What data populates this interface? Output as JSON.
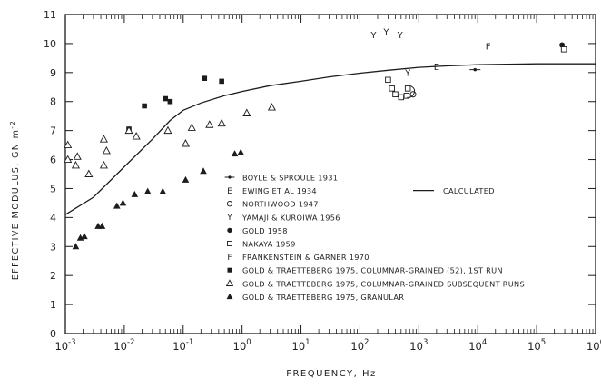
{
  "chart_data": {
    "type": "scatter",
    "x_scale": "log",
    "xlim": [
      0.001,
      1000000
    ],
    "ylim": [
      0,
      11
    ],
    "xlabel": "FREQUENCY, Hz",
    "ylabel": "EFFECTIVE MODULUS, GN m",
    "ylabel_exponent": "-2",
    "x_ticks": [
      {
        "base": "10",
        "exp": "-3"
      },
      {
        "base": "10",
        "exp": "-2"
      },
      {
        "base": "10",
        "exp": "-1"
      },
      {
        "base": "10",
        "exp": "0"
      },
      {
        "base": "10",
        "exp": "1"
      },
      {
        "base": "10",
        "exp": "2"
      },
      {
        "base": "10",
        "exp": "3"
      },
      {
        "base": "10",
        "exp": "4"
      },
      {
        "base": "10",
        "exp": "5"
      },
      {
        "base": "10",
        "exp": "6"
      }
    ],
    "y_ticks": [
      "0",
      "1",
      "2",
      "3",
      "4",
      "5",
      "6",
      "7",
      "8",
      "9",
      "10",
      "11"
    ],
    "legend": [
      {
        "marker": "bar-dot",
        "label": "BOYLE & SPROULE 1931"
      },
      {
        "marker": "E",
        "label": "EWING ET AL 1934"
      },
      {
        "marker": "circle-open",
        "label": "NORTHWOOD 1947"
      },
      {
        "marker": "Y",
        "label": "YAMAJI & KUROIWA 1956"
      },
      {
        "marker": "circle-filled",
        "label": "GOLD 1958"
      },
      {
        "marker": "square-open",
        "label": "NAKAYA 1959"
      },
      {
        "marker": "F",
        "label": "FRANKENSTEIN & GARNER 1970"
      },
      {
        "marker": "square-filled",
        "label": "GOLD & TRAETTEBERG 1975, COLUMNAR-GRAINED (52), 1ST RUN"
      },
      {
        "marker": "triangle-open",
        "label": "GOLD & TRAETTEBERG 1975, COLUMNAR-GRAINED SUBSEQUENT RUNS"
      },
      {
        "marker": "triangle-filled",
        "label": "GOLD & TRAETTEBERG 1975, GRANULAR"
      }
    ],
    "calculated_label": "CALCULATED",
    "legend_placement": "lower-right",
    "calculated_curve": [
      [
        0.001,
        4.1
      ],
      [
        0.003,
        4.7
      ],
      [
        0.01,
        5.75
      ],
      [
        0.03,
        6.7
      ],
      [
        0.06,
        7.35
      ],
      [
        0.1,
        7.7
      ],
      [
        0.2,
        7.95
      ],
      [
        0.5,
        8.2
      ],
      [
        1,
        8.35
      ],
      [
        3,
        8.55
      ],
      [
        10,
        8.7
      ],
      [
        30,
        8.85
      ],
      [
        100,
        8.98
      ],
      [
        300,
        9.08
      ],
      [
        1000,
        9.18
      ],
      [
        3000,
        9.23
      ],
      [
        10000,
        9.27
      ],
      [
        100000,
        9.3
      ],
      [
        1000000,
        9.3
      ]
    ],
    "series": [
      {
        "marker": "bar-dot",
        "points": [
          [
            9000,
            9.1
          ]
        ]
      },
      {
        "marker": "E",
        "points": [
          [
            2000,
            9.2
          ]
        ]
      },
      {
        "marker": "circle-open",
        "points": [
          [
            800,
            8.25
          ]
        ]
      },
      {
        "marker": "Y",
        "points": [
          [
            170,
            10.3
          ],
          [
            280,
            10.4
          ],
          [
            480,
            10.3
          ],
          [
            650,
            9.0
          ]
        ]
      },
      {
        "marker": "circle-filled",
        "points": [
          [
            270000,
            9.95
          ]
        ]
      },
      {
        "marker": "square-open",
        "points": [
          [
            300,
            8.75
          ],
          [
            350,
            8.45
          ],
          [
            400,
            8.25
          ],
          [
            500,
            8.15
          ],
          [
            620,
            8.2
          ],
          [
            650,
            8.45
          ],
          [
            290000,
            9.8
          ]
        ]
      },
      {
        "marker": "F",
        "points": [
          [
            15000,
            9.9
          ]
        ]
      },
      {
        "marker": "square-filled",
        "points": [
          [
            0.012,
            7.05
          ],
          [
            0.022,
            7.85
          ],
          [
            0.05,
            8.1
          ],
          [
            0.06,
            8.0
          ],
          [
            0.23,
            8.8
          ],
          [
            0.45,
            8.7
          ]
        ]
      },
      {
        "marker": "triangle-open",
        "points": [
          [
            0.0011,
            6.5
          ],
          [
            0.0011,
            6.0
          ],
          [
            0.0015,
            5.8
          ],
          [
            0.0016,
            6.1
          ],
          [
            0.0025,
            5.5
          ],
          [
            0.0045,
            6.7
          ],
          [
            0.0045,
            5.8
          ],
          [
            0.005,
            6.3
          ],
          [
            0.012,
            7.0
          ],
          [
            0.016,
            6.8
          ],
          [
            0.055,
            7.0
          ],
          [
            0.11,
            6.55
          ],
          [
            0.14,
            7.1
          ],
          [
            0.28,
            7.2
          ],
          [
            0.45,
            7.25
          ],
          [
            1.2,
            7.6
          ],
          [
            3.2,
            7.8
          ]
        ]
      },
      {
        "marker": "triangle-filled",
        "points": [
          [
            0.0015,
            3.0
          ],
          [
            0.0018,
            3.3
          ],
          [
            0.0021,
            3.35
          ],
          [
            0.0036,
            3.7
          ],
          [
            0.0042,
            3.7
          ],
          [
            0.0075,
            4.4
          ],
          [
            0.0095,
            4.5
          ],
          [
            0.015,
            4.8
          ],
          [
            0.025,
            4.9
          ],
          [
            0.045,
            4.9
          ],
          [
            0.11,
            5.3
          ],
          [
            0.22,
            5.6
          ],
          [
            0.75,
            6.2
          ],
          [
            0.95,
            6.25
          ]
        ]
      }
    ]
  }
}
